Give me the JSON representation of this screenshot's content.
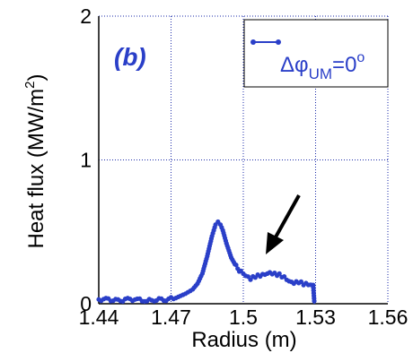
{
  "chart_data": {
    "type": "line",
    "panel_label": "(b)",
    "xlabel": "Radius (m)",
    "ylabel_main": "Heat flux (MW/m",
    "ylabel_sup": "2",
    "ylabel_close": ")",
    "xlim": [
      1.44,
      1.56
    ],
    "ylim": [
      0,
      2
    ],
    "xticks": [
      1.44,
      1.47,
      1.5,
      1.53,
      1.56
    ],
    "xtick_labels": [
      "1.44",
      "1.47",
      "1.5",
      "1.53",
      "1.56"
    ],
    "yticks": [
      0,
      1,
      2
    ],
    "ytick_labels": [
      "0",
      "1",
      "2"
    ],
    "grid": true,
    "legend_position": "top-right",
    "legend": {
      "delta": "Δ",
      "phi": "φ",
      "sub": "UM",
      "eq": "=0",
      "deg": "o"
    },
    "annotation": "arrow pointing to secondary peak near 1.51 m",
    "colors": {
      "series": "#2a3fc8",
      "panel": "#2a3fc8",
      "arrow": "#000000",
      "grid": "#1a2aa8"
    },
    "series": [
      {
        "name": "Δφ_UM=0°",
        "x": [
          1.44,
          1.444,
          1.448,
          1.452,
          1.456,
          1.46,
          1.464,
          1.468,
          1.472,
          1.476,
          1.479,
          1.481,
          1.483,
          1.485,
          1.487,
          1.4885,
          1.4895,
          1.4905,
          1.4915,
          1.493,
          1.495,
          1.497,
          1.499,
          1.501,
          1.503,
          1.505,
          1.507,
          1.509,
          1.511,
          1.513,
          1.515,
          1.517,
          1.519,
          1.521,
          1.523,
          1.525,
          1.527,
          1.529,
          1.5295
        ],
        "y": [
          0.03,
          0.03,
          0.02,
          0.03,
          0.03,
          0.02,
          0.03,
          0.03,
          0.04,
          0.07,
          0.1,
          0.14,
          0.21,
          0.33,
          0.47,
          0.55,
          0.57,
          0.55,
          0.51,
          0.42,
          0.32,
          0.26,
          0.22,
          0.19,
          0.17,
          0.19,
          0.2,
          0.21,
          0.22,
          0.21,
          0.2,
          0.18,
          0.15,
          0.14,
          0.15,
          0.14,
          0.14,
          0.13,
          0.0
        ]
      }
    ]
  }
}
